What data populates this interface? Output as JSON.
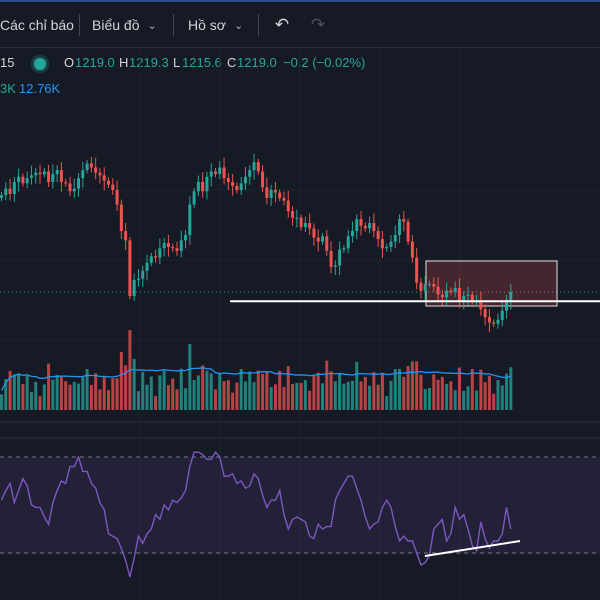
{
  "toolbar": {
    "indicators_label": "Các chỉ báo",
    "charts_label": "Biểu đồ",
    "profile_label": "Hồ sơ",
    "undo_icon": "undo-icon",
    "redo_icon": "redo-icon"
  },
  "legend": {
    "interval_fragment": "15",
    "open_label": "O",
    "open_value": "1219.0",
    "high_label": "H",
    "high_value": "1219.3",
    "low_label": "L",
    "low_value": "1215.6",
    "close_label": "C",
    "close_value": "1219.0",
    "change_value": "−0.2 (−0.02%)",
    "volume_fragment": "3K",
    "volume_ma": "12.76K"
  },
  "colors": {
    "up": "#26a69a",
    "down": "#ef5350",
    "background": "#161a25",
    "rsi_line": "#7e57c2",
    "volume_ma_line": "#2196f3"
  },
  "chart_data": {
    "type": "candlestick",
    "price_series": [
      1226.3,
      1226.8,
      1226.4,
      1227.3,
      1227.7,
      1227.2,
      1227.6,
      1227.8,
      1228.0,
      1227.9,
      1228.1,
      1227.3,
      1227.9,
      1228.2,
      1227.3,
      1227.2,
      1226.6,
      1226.8,
      1227.6,
      1228.2,
      1228.7,
      1228.4,
      1228.0,
      1227.8,
      1227.4,
      1227.1,
      1226.7,
      1225.6,
      1223.6,
      1222.9,
      1218.7,
      1219.9,
      1220.0,
      1220.6,
      1221.2,
      1221.7,
      1221.6,
      1222.3,
      1222.7,
      1222.4,
      1222.3,
      1222.1,
      1222.9,
      1223.3,
      1225.6,
      1226.6,
      1227.3,
      1226.6,
      1227.7,
      1228.1,
      1227.9,
      1228.4,
      1227.6,
      1227.3,
      1227.0,
      1226.7,
      1227.2,
      1227.7,
      1228.2,
      1228.8,
      1228.1,
      1226.9,
      1226.1,
      1226.7,
      1226.5,
      1226.1,
      1225.9,
      1225.1,
      1224.6,
      1224.6,
      1223.9,
      1224.2,
      1223.8,
      1223.1,
      1222.8,
      1223.2,
      1222.1,
      1220.9,
      1221.0,
      1222.2,
      1222.3,
      1223.2,
      1223.6,
      1224.5,
      1224.0,
      1223.8,
      1224.2,
      1223.6,
      1223.0,
      1222.3,
      1222.4,
      1222.8,
      1223.3,
      1224.5,
      1224.3,
      1222.8,
      1221.6,
      1219.7,
      1219.1,
      1219.6,
      1219.6,
      1219.4,
      1218.8,
      1218.6,
      1219.1,
      1219.0,
      1219.3,
      1218.3,
      1218.7,
      1218.8,
      1218.3,
      1218.3,
      1217.7,
      1217.1,
      1216.7,
      1216.6,
      1216.9,
      1217.6,
      1218.4,
      1219.0
    ],
    "rsi_series": [
      52,
      56,
      59,
      51,
      56,
      61,
      58,
      50,
      49,
      49,
      45,
      42,
      51,
      56,
      60,
      59,
      66,
      66,
      70,
      64,
      64,
      59,
      57,
      51,
      48,
      38,
      37,
      36,
      32,
      27,
      20,
      28,
      37,
      34,
      38,
      40,
      46,
      44,
      50,
      48,
      52,
      51,
      53,
      56,
      66,
      72,
      72,
      71,
      69,
      69,
      72,
      70,
      62,
      62,
      63,
      59,
      60,
      57,
      58,
      63,
      61,
      54,
      49,
      52,
      52,
      56,
      46,
      40,
      44,
      45,
      44,
      43,
      37,
      36,
      42,
      40,
      41,
      41,
      52,
      56,
      59,
      62,
      62,
      57,
      52,
      45,
      40,
      42,
      43,
      49,
      52,
      49,
      41,
      35,
      37,
      35,
      35,
      30,
      25,
      26,
      29,
      40,
      42,
      44,
      35,
      38,
      49,
      44,
      46,
      40,
      33,
      31,
      43,
      36,
      32,
      35,
      35,
      38,
      49,
      40
    ],
    "price_line_level": 1219.0,
    "support_level": 1218.3,
    "rsi_levels": [
      70,
      30
    ],
    "annotations": [
      "support-line",
      "consolidation-box",
      "rsi-trendline"
    ]
  }
}
